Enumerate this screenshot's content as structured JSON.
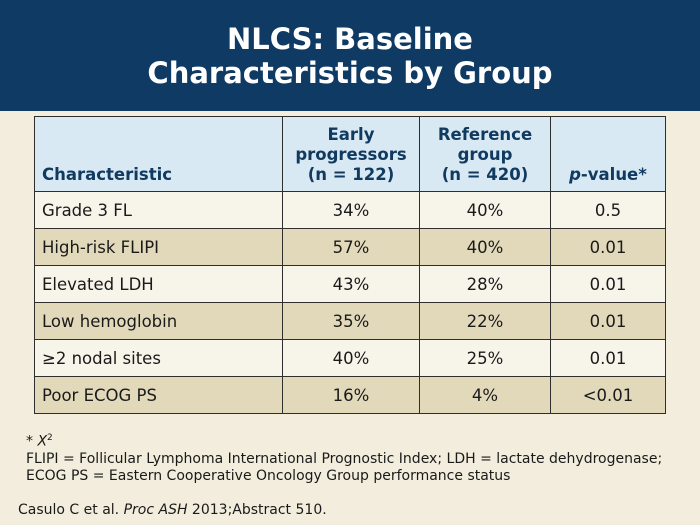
{
  "header": {
    "title_line1": "NLCS: Baseline",
    "title_line2": "Characteristics by Group"
  },
  "table": {
    "headers": {
      "characteristic": "Characteristic",
      "early_line1": "Early",
      "early_line2": "progressors",
      "early_line3": "(n = 122)",
      "ref_line1": "Reference",
      "ref_line2": "group",
      "ref_line3": "(n = 420)",
      "pvalue_italic": "p",
      "pvalue_rest": "-value*"
    },
    "rows": [
      {
        "characteristic": "Grade 3 FL",
        "early": "34%",
        "reference": "40%",
        "p": "0.5"
      },
      {
        "characteristic": "High-risk FLIPI",
        "early": "57%",
        "reference": "40%",
        "p": "0.01"
      },
      {
        "characteristic": "Elevated LDH",
        "early": "43%",
        "reference": "28%",
        "p": "0.01"
      },
      {
        "characteristic": "Low hemoglobin",
        "early": "35%",
        "reference": "22%",
        "p": "0.01"
      },
      {
        "characteristic": "≥2 nodal sites",
        "early": "40%",
        "reference": "25%",
        "p": "0.01"
      },
      {
        "characteristic": "Poor ECOG PS",
        "early": "16%",
        "reference": "4%",
        "p": "<0.01"
      }
    ]
  },
  "footnote": {
    "star_prefix": "* ",
    "chi": "X",
    "chi_sup": "2",
    "abbreviations": "FLIPI = Follicular Lymphoma International Prognostic Index; LDH = lactate dehydrogenase; ECOG PS = Eastern Cooperative Oncology Group performance status"
  },
  "citation": {
    "authors": "Casulo C et al. ",
    "journal": "Proc ASH",
    "rest": " 2013;Abstract 510."
  },
  "colors": {
    "header_bg": "#0f3a63",
    "table_header_bg": "#d9e9f3",
    "row_light": "#f7f4ea",
    "row_dark": "#e2d9bb",
    "page_bg": "#f2eddc"
  }
}
